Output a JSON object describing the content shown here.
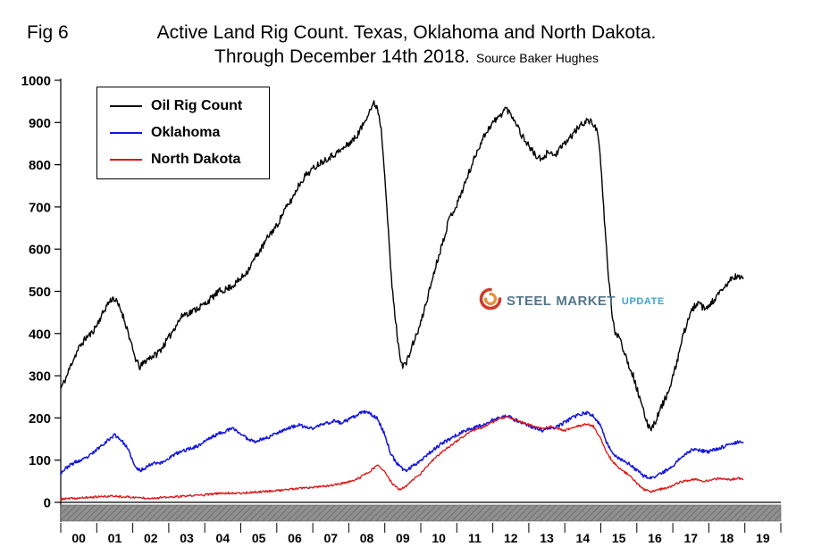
{
  "figure": {
    "fig_label": "Fig 6",
    "title_line1": "Active Land Rig Count. Texas, Oklahoma and North Dakota.",
    "title_line2": "Through December 14th 2018.",
    "source": "Source Baker Hughes"
  },
  "watermark": {
    "icon": "swirl-icon",
    "word1": "STEEL",
    "word2": "MARKET",
    "word3": "UPDATE",
    "colors": {
      "steel": "#4a7086",
      "market": "#4a7086",
      "update": "#2f9fd0",
      "swirl_outer": "#cc3322",
      "swirl_inner": "#e98a2b"
    }
  },
  "chart_data": {
    "type": "line",
    "title": "Active Land Rig Count. Texas, Oklahoma and North Dakota. Through December 14th 2018.",
    "source": "Baker Hughes",
    "legend": [
      "Oil Rig Count",
      "Oklahoma",
      "North Dakota"
    ],
    "legend_position": "top-left-inside",
    "grid": false,
    "y_axis": {
      "min": 0,
      "max": 1000,
      "step": 100,
      "ticks": [
        0,
        100,
        200,
        300,
        400,
        500,
        600,
        700,
        800,
        900,
        1000
      ]
    },
    "x_axis": {
      "labels": [
        "00",
        "01",
        "02",
        "03",
        "04",
        "05",
        "06",
        "07",
        "08",
        "09",
        "10",
        "11",
        "12",
        "13",
        "14",
        "15",
        "16",
        "17",
        "18",
        "19"
      ],
      "range": [
        2000,
        2020
      ]
    },
    "series": [
      {
        "name": "Oil Rig Count",
        "color": "#000000",
        "jitter": 8,
        "points": [
          [
            2000.0,
            270
          ],
          [
            2000.15,
            295
          ],
          [
            2000.3,
            330
          ],
          [
            2000.5,
            365
          ],
          [
            2000.7,
            390
          ],
          [
            2000.85,
            400
          ],
          [
            2001.0,
            420
          ],
          [
            2001.15,
            445
          ],
          [
            2001.3,
            470
          ],
          [
            2001.45,
            485
          ],
          [
            2001.55,
            475
          ],
          [
            2001.7,
            450
          ],
          [
            2001.85,
            410
          ],
          [
            2002.0,
            360
          ],
          [
            2002.1,
            335
          ],
          [
            2002.2,
            320
          ],
          [
            2002.35,
            335
          ],
          [
            2002.5,
            345
          ],
          [
            2002.65,
            350
          ],
          [
            2002.8,
            365
          ],
          [
            2003.0,
            390
          ],
          [
            2003.2,
            420
          ],
          [
            2003.4,
            445
          ],
          [
            2003.6,
            450
          ],
          [
            2003.8,
            460
          ],
          [
            2004.0,
            470
          ],
          [
            2004.2,
            485
          ],
          [
            2004.4,
            500
          ],
          [
            2004.6,
            505
          ],
          [
            2004.8,
            515
          ],
          [
            2005.0,
            530
          ],
          [
            2005.2,
            550
          ],
          [
            2005.4,
            580
          ],
          [
            2005.6,
            605
          ],
          [
            2005.8,
            635
          ],
          [
            2006.0,
            655
          ],
          [
            2006.2,
            690
          ],
          [
            2006.4,
            715
          ],
          [
            2006.6,
            750
          ],
          [
            2006.8,
            775
          ],
          [
            2007.0,
            790
          ],
          [
            2007.2,
            805
          ],
          [
            2007.4,
            815
          ],
          [
            2007.6,
            825
          ],
          [
            2007.8,
            835
          ],
          [
            2008.0,
            850
          ],
          [
            2008.2,
            865
          ],
          [
            2008.4,
            895
          ],
          [
            2008.55,
            925
          ],
          [
            2008.7,
            945
          ],
          [
            2008.8,
            935
          ],
          [
            2008.9,
            885
          ],
          [
            2009.0,
            780
          ],
          [
            2009.1,
            640
          ],
          [
            2009.2,
            510
          ],
          [
            2009.3,
            430
          ],
          [
            2009.4,
            355
          ],
          [
            2009.5,
            325
          ],
          [
            2009.6,
            330
          ],
          [
            2009.7,
            355
          ],
          [
            2009.8,
            380
          ],
          [
            2009.9,
            400
          ],
          [
            2010.0,
            425
          ],
          [
            2010.2,
            490
          ],
          [
            2010.4,
            555
          ],
          [
            2010.6,
            615
          ],
          [
            2010.8,
            675
          ],
          [
            2011.0,
            705
          ],
          [
            2011.2,
            750
          ],
          [
            2011.4,
            795
          ],
          [
            2011.6,
            840
          ],
          [
            2011.8,
            875
          ],
          [
            2012.0,
            900
          ],
          [
            2012.2,
            915
          ],
          [
            2012.35,
            935
          ],
          [
            2012.5,
            920
          ],
          [
            2012.65,
            900
          ],
          [
            2012.8,
            870
          ],
          [
            2013.0,
            845
          ],
          [
            2013.2,
            820
          ],
          [
            2013.4,
            810
          ],
          [
            2013.55,
            835
          ],
          [
            2013.7,
            820
          ],
          [
            2013.85,
            835
          ],
          [
            2014.0,
            850
          ],
          [
            2014.2,
            870
          ],
          [
            2014.4,
            890
          ],
          [
            2014.6,
            905
          ],
          [
            2014.75,
            900
          ],
          [
            2014.9,
            885
          ],
          [
            2015.0,
            800
          ],
          [
            2015.1,
            670
          ],
          [
            2015.2,
            550
          ],
          [
            2015.3,
            455
          ],
          [
            2015.4,
            395
          ],
          [
            2015.5,
            400
          ],
          [
            2015.6,
            370
          ],
          [
            2015.7,
            345
          ],
          [
            2015.8,
            320
          ],
          [
            2015.9,
            300
          ],
          [
            2016.0,
            270
          ],
          [
            2016.1,
            240
          ],
          [
            2016.2,
            210
          ],
          [
            2016.3,
            185
          ],
          [
            2016.4,
            177
          ],
          [
            2016.5,
            188
          ],
          [
            2016.6,
            210
          ],
          [
            2016.7,
            230
          ],
          [
            2016.8,
            248
          ],
          [
            2016.9,
            265
          ],
          [
            2017.0,
            295
          ],
          [
            2017.15,
            345
          ],
          [
            2017.3,
            400
          ],
          [
            2017.45,
            440
          ],
          [
            2017.6,
            465
          ],
          [
            2017.75,
            470
          ],
          [
            2017.9,
            455
          ],
          [
            2018.0,
            465
          ],
          [
            2018.15,
            480
          ],
          [
            2018.3,
            495
          ],
          [
            2018.45,
            510
          ],
          [
            2018.6,
            528
          ],
          [
            2018.75,
            535
          ],
          [
            2018.95,
            530
          ]
        ]
      },
      {
        "name": "Oklahoma",
        "color": "#1414dd",
        "jitter": 4,
        "points": [
          [
            2000.0,
            70
          ],
          [
            2000.2,
            85
          ],
          [
            2000.4,
            95
          ],
          [
            2000.6,
            100
          ],
          [
            2000.8,
            110
          ],
          [
            2001.0,
            125
          ],
          [
            2001.2,
            140
          ],
          [
            2001.35,
            150
          ],
          [
            2001.5,
            160
          ],
          [
            2001.65,
            150
          ],
          [
            2001.8,
            135
          ],
          [
            2001.95,
            110
          ],
          [
            2002.05,
            85
          ],
          [
            2002.2,
            75
          ],
          [
            2002.4,
            85
          ],
          [
            2002.6,
            95
          ],
          [
            2002.8,
            93
          ],
          [
            2003.0,
            105
          ],
          [
            2003.2,
            115
          ],
          [
            2003.4,
            122
          ],
          [
            2003.6,
            128
          ],
          [
            2003.8,
            133
          ],
          [
            2004.0,
            145
          ],
          [
            2004.2,
            155
          ],
          [
            2004.4,
            163
          ],
          [
            2004.6,
            170
          ],
          [
            2004.8,
            175
          ],
          [
            2005.0,
            162
          ],
          [
            2005.2,
            150
          ],
          [
            2005.4,
            145
          ],
          [
            2005.6,
            150
          ],
          [
            2005.8,
            155
          ],
          [
            2006.0,
            165
          ],
          [
            2006.2,
            172
          ],
          [
            2006.4,
            178
          ],
          [
            2006.6,
            183
          ],
          [
            2006.8,
            178
          ],
          [
            2007.0,
            175
          ],
          [
            2007.2,
            183
          ],
          [
            2007.4,
            188
          ],
          [
            2007.6,
            193
          ],
          [
            2007.8,
            188
          ],
          [
            2008.0,
            196
          ],
          [
            2008.2,
            205
          ],
          [
            2008.4,
            215
          ],
          [
            2008.6,
            210
          ],
          [
            2008.8,
            198
          ],
          [
            2009.0,
            160
          ],
          [
            2009.15,
            120
          ],
          [
            2009.3,
            95
          ],
          [
            2009.45,
            82
          ],
          [
            2009.6,
            75
          ],
          [
            2009.8,
            88
          ],
          [
            2010.0,
            100
          ],
          [
            2010.2,
            115
          ],
          [
            2010.4,
            128
          ],
          [
            2010.6,
            140
          ],
          [
            2010.8,
            150
          ],
          [
            2011.0,
            160
          ],
          [
            2011.2,
            168
          ],
          [
            2011.4,
            175
          ],
          [
            2011.6,
            180
          ],
          [
            2011.8,
            186
          ],
          [
            2012.0,
            195
          ],
          [
            2012.2,
            200
          ],
          [
            2012.4,
            205
          ],
          [
            2012.6,
            196
          ],
          [
            2012.8,
            190
          ],
          [
            2013.0,
            182
          ],
          [
            2013.2,
            175
          ],
          [
            2013.4,
            170
          ],
          [
            2013.6,
            175
          ],
          [
            2013.8,
            180
          ],
          [
            2014.0,
            190
          ],
          [
            2014.2,
            200
          ],
          [
            2014.4,
            208
          ],
          [
            2014.6,
            212
          ],
          [
            2014.8,
            205
          ],
          [
            2015.0,
            180
          ],
          [
            2015.15,
            145
          ],
          [
            2015.3,
            120
          ],
          [
            2015.45,
            107
          ],
          [
            2015.6,
            100
          ],
          [
            2015.8,
            90
          ],
          [
            2016.0,
            75
          ],
          [
            2016.2,
            62
          ],
          [
            2016.4,
            57
          ],
          [
            2016.6,
            64
          ],
          [
            2016.8,
            75
          ],
          [
            2017.0,
            85
          ],
          [
            2017.2,
            105
          ],
          [
            2017.4,
            118
          ],
          [
            2017.6,
            127
          ],
          [
            2017.8,
            122
          ],
          [
            2018.0,
            120
          ],
          [
            2018.2,
            126
          ],
          [
            2018.4,
            132
          ],
          [
            2018.6,
            138
          ],
          [
            2018.8,
            143
          ],
          [
            2018.95,
            141
          ]
        ]
      },
      {
        "name": "North Dakota",
        "color": "#e01212",
        "jitter": 2.5,
        "points": [
          [
            2000.0,
            8
          ],
          [
            2000.5,
            10
          ],
          [
            2001.0,
            13
          ],
          [
            2001.5,
            15
          ],
          [
            2002.0,
            12
          ],
          [
            2002.5,
            10
          ],
          [
            2003.0,
            12
          ],
          [
            2003.5,
            15
          ],
          [
            2004.0,
            18
          ],
          [
            2004.5,
            22
          ],
          [
            2005.0,
            22
          ],
          [
            2005.5,
            25
          ],
          [
            2006.0,
            28
          ],
          [
            2006.5,
            32
          ],
          [
            2007.0,
            35
          ],
          [
            2007.5,
            40
          ],
          [
            2008.0,
            48
          ],
          [
            2008.3,
            58
          ],
          [
            2008.6,
            75
          ],
          [
            2008.8,
            88
          ],
          [
            2009.0,
            72
          ],
          [
            2009.2,
            45
          ],
          [
            2009.4,
            30
          ],
          [
            2009.6,
            38
          ],
          [
            2009.8,
            55
          ],
          [
            2010.0,
            68
          ],
          [
            2010.2,
            88
          ],
          [
            2010.4,
            105
          ],
          [
            2010.6,
            120
          ],
          [
            2010.8,
            133
          ],
          [
            2011.0,
            145
          ],
          [
            2011.2,
            158
          ],
          [
            2011.4,
            168
          ],
          [
            2011.6,
            175
          ],
          [
            2011.8,
            180
          ],
          [
            2012.0,
            190
          ],
          [
            2012.2,
            198
          ],
          [
            2012.4,
            204
          ],
          [
            2012.6,
            196
          ],
          [
            2012.8,
            190
          ],
          [
            2013.0,
            185
          ],
          [
            2013.2,
            178
          ],
          [
            2013.4,
            174
          ],
          [
            2013.6,
            180
          ],
          [
            2013.8,
            175
          ],
          [
            2014.0,
            170
          ],
          [
            2014.2,
            176
          ],
          [
            2014.4,
            181
          ],
          [
            2014.6,
            186
          ],
          [
            2014.8,
            180
          ],
          [
            2015.0,
            150
          ],
          [
            2015.2,
            112
          ],
          [
            2015.4,
            90
          ],
          [
            2015.6,
            75
          ],
          [
            2015.8,
            64
          ],
          [
            2016.0,
            45
          ],
          [
            2016.2,
            30
          ],
          [
            2016.4,
            26
          ],
          [
            2016.6,
            30
          ],
          [
            2016.8,
            34
          ],
          [
            2017.0,
            40
          ],
          [
            2017.2,
            48
          ],
          [
            2017.4,
            52
          ],
          [
            2017.6,
            55
          ],
          [
            2017.8,
            50
          ],
          [
            2018.0,
            52
          ],
          [
            2018.2,
            55
          ],
          [
            2018.4,
            57
          ],
          [
            2018.6,
            54
          ],
          [
            2018.8,
            57
          ],
          [
            2018.95,
            55
          ]
        ]
      }
    ]
  }
}
